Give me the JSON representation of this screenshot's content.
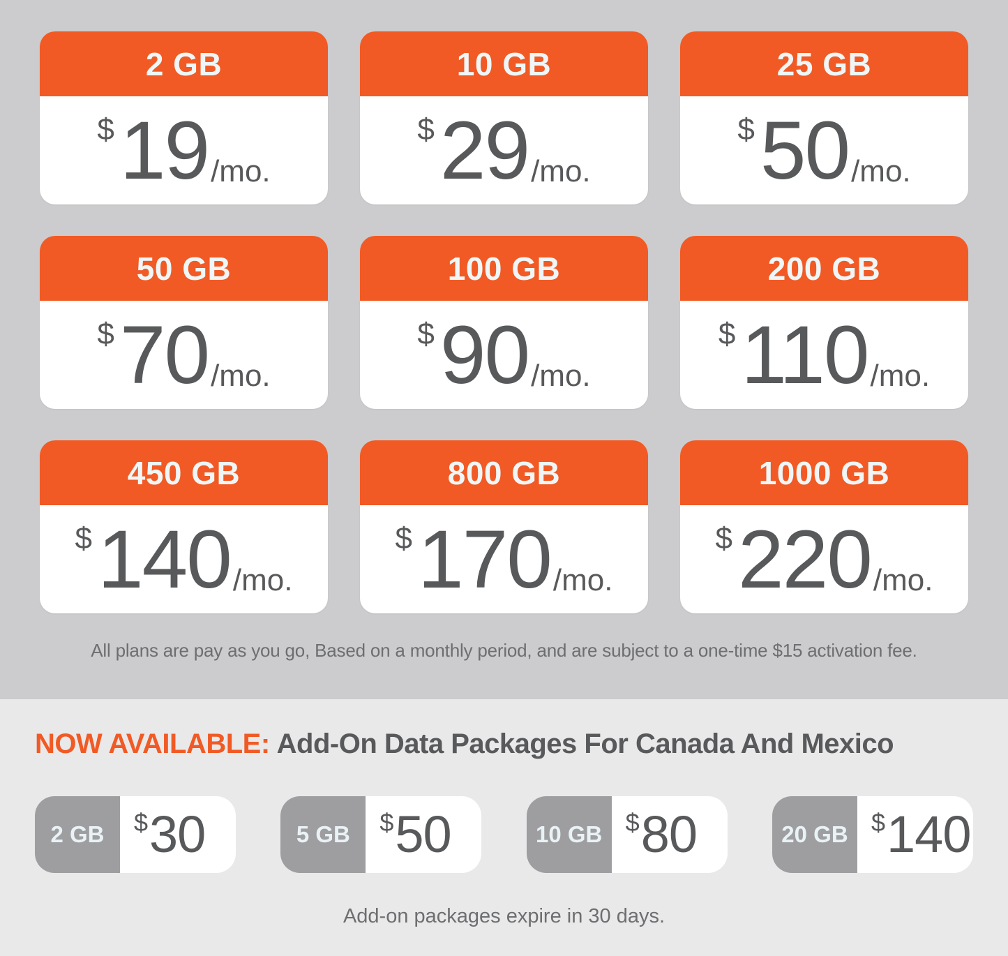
{
  "colors": {
    "accent_orange": "#F15A24",
    "plans_background": "#CCCCCE",
    "addons_background": "#E9E9EA",
    "card_background": "#FFFFFF",
    "price_text": "#58595B",
    "addon_label_background": "#9E9EA1",
    "note_text": "#6D6E70"
  },
  "plans": [
    {
      "data": "2 GB",
      "currency": "$",
      "price": "19",
      "period": "/mo."
    },
    {
      "data": "10 GB",
      "currency": "$",
      "price": "29",
      "period": "/mo."
    },
    {
      "data": "25 GB",
      "currency": "$",
      "price": "50",
      "period": "/mo."
    },
    {
      "data": "50 GB",
      "currency": "$",
      "price": "70",
      "period": "/mo."
    },
    {
      "data": "100 GB",
      "currency": "$",
      "price": "90",
      "period": "/mo."
    },
    {
      "data": "200 GB",
      "currency": "$",
      "price": "110",
      "period": "/mo."
    },
    {
      "data": "450 GB",
      "currency": "$",
      "price": "140",
      "period": "/mo."
    },
    {
      "data": "800 GB",
      "currency": "$",
      "price": "170",
      "period": "/mo."
    },
    {
      "data": "1000 GB",
      "currency": "$",
      "price": "220",
      "period": "/mo."
    }
  ],
  "plans_note": "All plans are pay as you go, Based on a monthly period, and are subject to a one-time $15 activation fee.",
  "addons": {
    "heading_highlight": "NOW AVAILABLE:",
    "heading_rest": "Add-On Data Packages For Canada And Mexico",
    "packages": [
      {
        "data": "2 GB",
        "currency": "$",
        "price": "30"
      },
      {
        "data": "5 GB",
        "currency": "$",
        "price": "50"
      },
      {
        "data": "10 GB",
        "currency": "$",
        "price": "80"
      },
      {
        "data": "20 GB",
        "currency": "$",
        "price": "140"
      }
    ],
    "note": "Add-on packages expire in 30 days."
  }
}
